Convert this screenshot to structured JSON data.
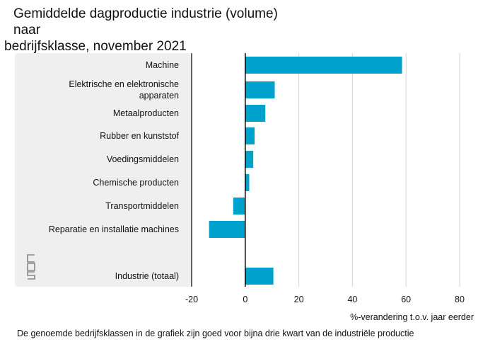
{
  "title": {
    "line1": "Gemiddelde dagproductie industrie (volume) naar",
    "line2": "bedrijfsklasse, november 2021"
  },
  "footnote": "De genoemde bedrijfsklassen in de grafiek zijn goed voor bijna drie kwart van de industriële productie",
  "logo": {
    "icon": "cbs-logo",
    "text": "cbs"
  },
  "colors": {
    "bar": "#00A1CD",
    "panel": "#EFEFEF",
    "grid": "#D5D5D5",
    "axis": "#000000"
  },
  "chart_data": {
    "type": "bar",
    "orientation": "horizontal",
    "categories": [
      [
        "Machine"
      ],
      [
        "Elektrische en elektronische",
        "apparaten"
      ],
      [
        "Metaalproducten"
      ],
      [
        "Rubber en kunststof"
      ],
      [
        "Voedingsmiddelen"
      ],
      [
        "Chemische producten"
      ],
      [
        "Transportmiddelen"
      ],
      [
        "Reparatie en installatie machines"
      ],
      [
        "Industrie (totaal)"
      ]
    ],
    "values": [
      58.5,
      11,
      7.5,
      3.5,
      3,
      1.5,
      -4.5,
      -13.5,
      10.5
    ],
    "xlabel": "%-verandering t.o.v. jaar eerder",
    "xlim": [
      -20,
      80
    ],
    "xticks": [
      "-20",
      "0",
      "20",
      "40",
      "60",
      "80"
    ],
    "grid": true
  }
}
